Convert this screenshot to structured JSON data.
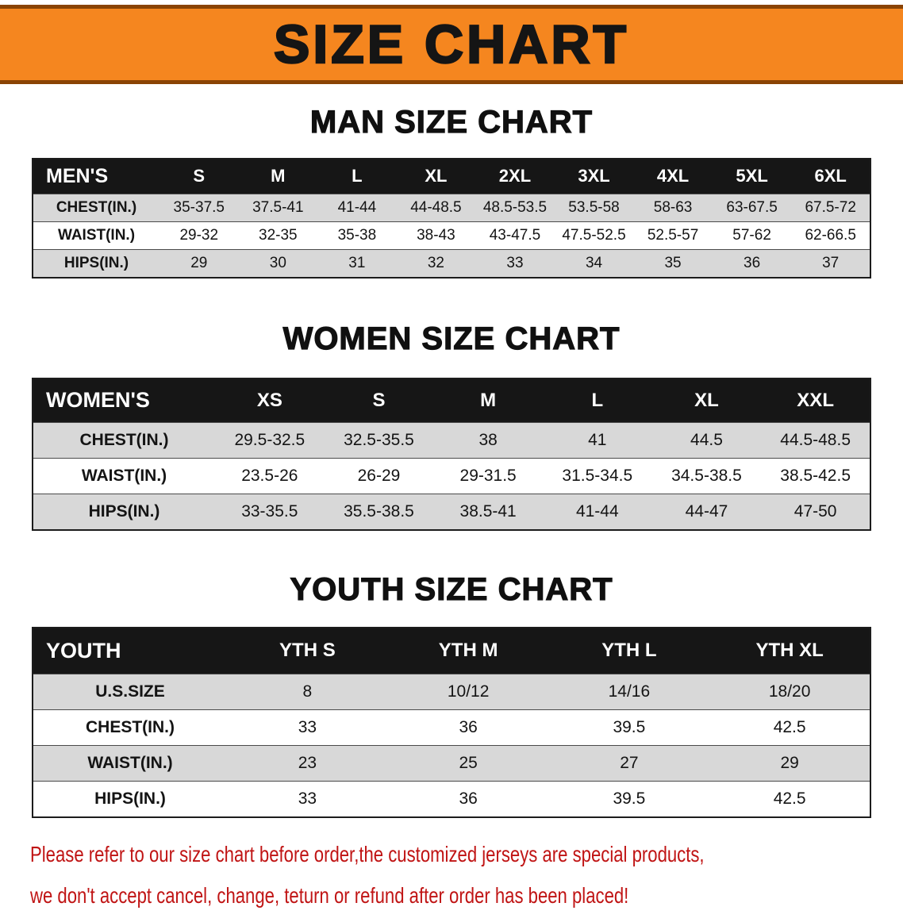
{
  "banner": {
    "title": "SIZE CHART"
  },
  "colors": {
    "banner-bg": "#f5861f",
    "banner-border": "#8a4304",
    "table-header-bg": "#161616",
    "stripe": "#d8d8d8",
    "note-color": "#c01414"
  },
  "sections": [
    {
      "id": "men",
      "heading": "MAN SIZE CHART",
      "corner_label": "MEN'S",
      "columns": [
        "S",
        "M",
        "L",
        "XL",
        "2XL",
        "3XL",
        "4XL",
        "5XL",
        "6XL"
      ],
      "rows": [
        {
          "label": "CHEST(IN.)",
          "values": [
            "35-37.5",
            "37.5-41",
            "41-44",
            "44-48.5",
            "48.5-53.5",
            "53.5-58",
            "58-63",
            "63-67.5",
            "67.5-72"
          ]
        },
        {
          "label": "WAIST(IN.)",
          "values": [
            "29-32",
            "32-35",
            "35-38",
            "38-43",
            "43-47.5",
            "47.5-52.5",
            "52.5-57",
            "57-62",
            "62-66.5"
          ]
        },
        {
          "label": "HIPS(IN.)",
          "values": [
            "29",
            "30",
            "31",
            "32",
            "33",
            "34",
            "35",
            "36",
            "37"
          ]
        }
      ]
    },
    {
      "id": "women",
      "heading": "WOMEN SIZE CHART",
      "corner_label": "WOMEN'S",
      "columns": [
        "XS",
        "S",
        "M",
        "L",
        "XL",
        "XXL"
      ],
      "rows": [
        {
          "label": "CHEST(IN.)",
          "values": [
            "29.5-32.5",
            "32.5-35.5",
            "38",
            "41",
            "44.5",
            "44.5-48.5"
          ]
        },
        {
          "label": "WAIST(IN.)",
          "values": [
            "23.5-26",
            "26-29",
            "29-31.5",
            "31.5-34.5",
            "34.5-38.5",
            "38.5-42.5"
          ]
        },
        {
          "label": "HIPS(IN.)",
          "values": [
            "33-35.5",
            "35.5-38.5",
            "38.5-41",
            "41-44",
            "44-47",
            "47-50"
          ]
        }
      ]
    },
    {
      "id": "youth",
      "heading": "YOUTH SIZE CHART",
      "corner_label": "YOUTH",
      "columns": [
        "YTH S",
        "YTH M",
        "YTH L",
        "YTH XL"
      ],
      "rows": [
        {
          "label": "U.S.SIZE",
          "values": [
            "8",
            "10/12",
            "14/16",
            "18/20"
          ]
        },
        {
          "label": "CHEST(IN.)",
          "values": [
            "33",
            "36",
            "39.5",
            "42.5"
          ]
        },
        {
          "label": "WAIST(IN.)",
          "values": [
            "23",
            "25",
            "27",
            "29"
          ]
        },
        {
          "label": "HIPS(IN.)",
          "values": [
            "33",
            "36",
            "39.5",
            "42.5"
          ]
        }
      ]
    }
  ],
  "footer": {
    "line1": "Please refer to our size chart before order,the customized jerseys are special products,",
    "line2": "we don't accept cancel, change, teturn or refund after order has been placed!"
  }
}
